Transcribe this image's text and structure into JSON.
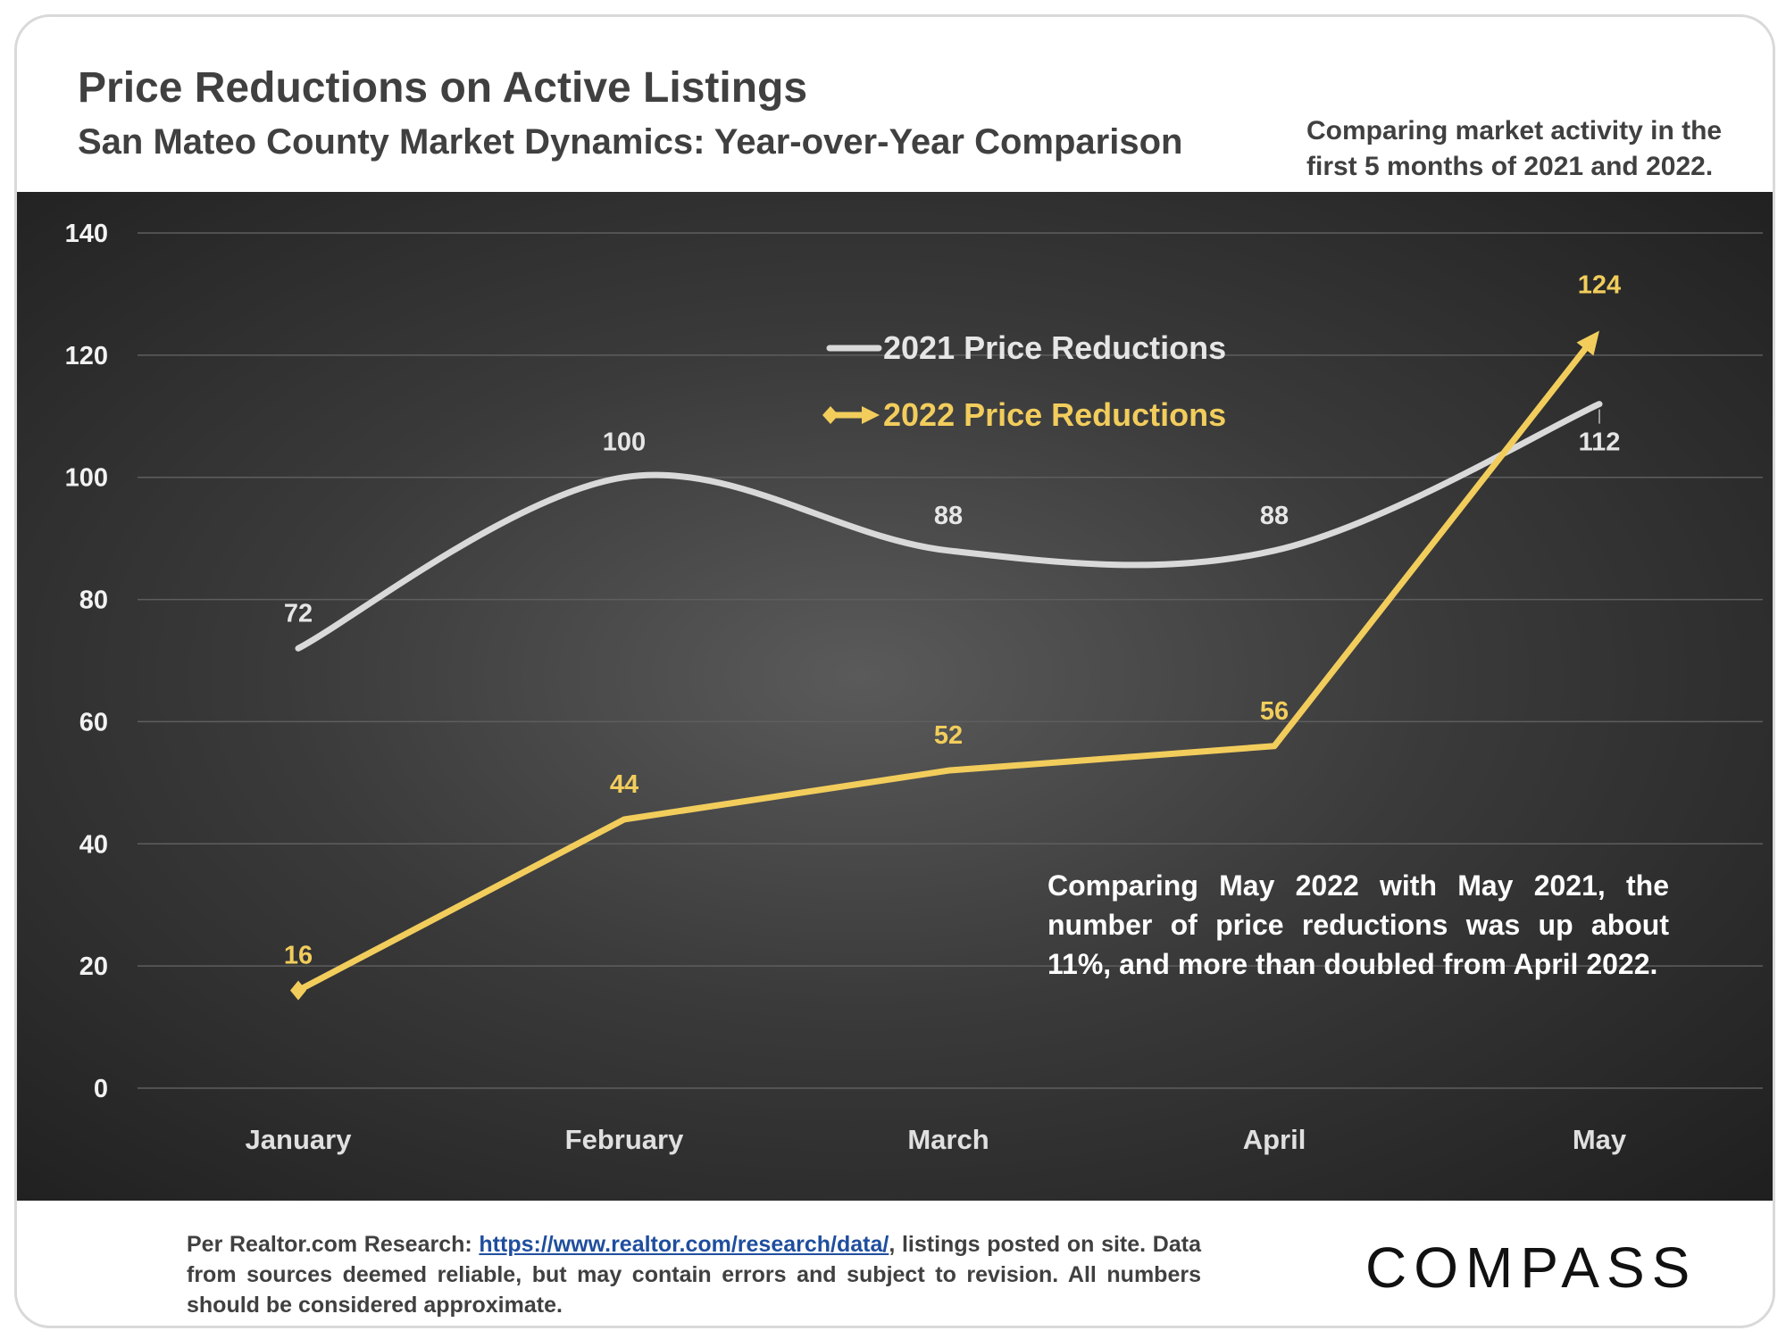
{
  "chart_data": {
    "type": "line",
    "title": "Price Reductions on Active Listings",
    "subtitle": "San Mateo County Market Dynamics: Year-over-Year Comparison",
    "note": "Comparing market activity in the first 5 months of 2021 and 2022.",
    "categories": [
      "January",
      "February",
      "March",
      "April",
      "May"
    ],
    "series": [
      {
        "name": "2021 Price Reductions",
        "values": [
          72,
          100,
          88,
          88,
          112
        ],
        "color": "#d9d9d9",
        "smooth": true
      },
      {
        "name": "2022 Price Reductions",
        "values": [
          16,
          44,
          52,
          56,
          124
        ],
        "color": "#f2cd5c",
        "smooth": false
      }
    ],
    "ylim": [
      0,
      140
    ],
    "yticks": [
      0,
      20,
      40,
      60,
      80,
      100,
      120,
      140
    ],
    "grid": true,
    "legend_position": "top-center",
    "annotation": "Comparing May 2022 with May 2021, the number of price reductions was up about 11%, and more than doubled from April 2022."
  },
  "footer": {
    "source_prefix": "Per Realtor.com Research: ",
    "source_link": "https://www.realtor.com/research/data/",
    "source_suffix": ", listings posted on site. Data from sources deemed reliable, but may contain errors and subject to revision. All numbers should be considered approximate."
  },
  "logo": {
    "text": "COMPASS"
  }
}
